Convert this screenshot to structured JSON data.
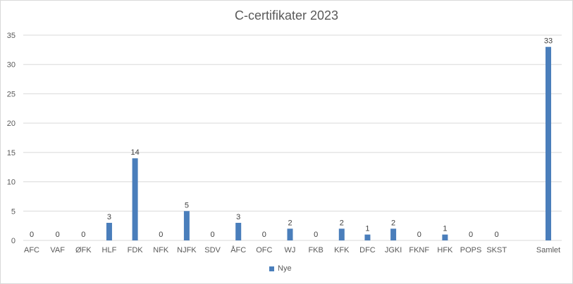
{
  "chart_data": {
    "type": "bar",
    "title": "C-certifikater 2023",
    "xlabel": "",
    "ylabel": "",
    "categories": [
      "AFC",
      "VAF",
      "ØFK",
      "HLF",
      "FDK",
      "NFK",
      "NJFK",
      "SDV",
      "ÅFC",
      "OFC",
      "WJ",
      "FKB",
      "KFK",
      "DFC",
      "JGKI",
      "FKNF",
      "HFK",
      "POPS",
      "SKST",
      "Samlet"
    ],
    "series": [
      {
        "name": "Nye",
        "values": [
          0,
          0,
          0,
          3,
          14,
          0,
          5,
          0,
          3,
          0,
          2,
          0,
          2,
          1,
          2,
          0,
          1,
          0,
          0,
          33
        ],
        "color": "#4a7ebb"
      }
    ],
    "ylim": [
      0,
      35
    ],
    "yticks": [
      0,
      5,
      10,
      15,
      20,
      25,
      30,
      35
    ],
    "grid": true,
    "legend_position": "bottom",
    "data_labels": true
  }
}
